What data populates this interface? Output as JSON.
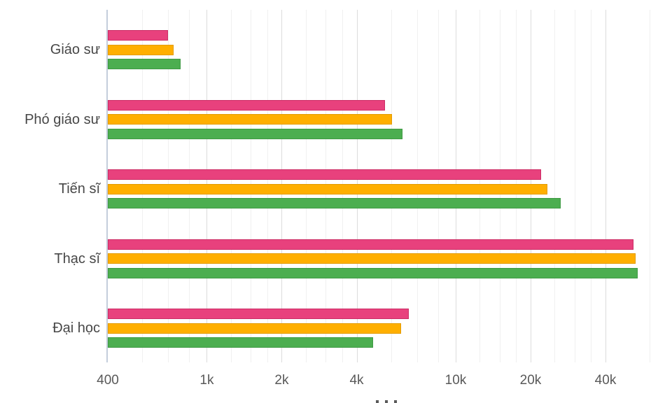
{
  "chart_data": {
    "type": "bar",
    "orientation": "horizontal",
    "title": "",
    "x_scale": "log",
    "legend": "none",
    "grid": true,
    "categories": [
      "Giáo sư",
      "Phó giáo sư",
      "Tiến sĩ",
      "Thạc sĩ",
      "Đại học"
    ],
    "series": [
      {
        "name": "series-pink",
        "color": "#e8417d",
        "border": "#cc2e66",
        "values": [
          700,
          5200,
          22000,
          51800,
          6500
        ]
      },
      {
        "name": "series-orange",
        "color": "#ffaf00",
        "border": "#e39b00",
        "values": [
          735,
          5550,
          23300,
          52900,
          6050
        ]
      },
      {
        "name": "series-green",
        "color": "#4cae50",
        "border": "#3f9a44",
        "values": [
          785,
          6100,
          26400,
          54000,
          4650
        ]
      }
    ],
    "x_ticks": [
      {
        "value": 400,
        "label": "400"
      },
      {
        "value": 1000,
        "label": "1k"
      },
      {
        "value": 2000,
        "label": "2k"
      },
      {
        "value": 4000,
        "label": "4k"
      },
      {
        "value": 10000,
        "label": "10k"
      },
      {
        "value": 20000,
        "label": "20k"
      },
      {
        "value": 40000,
        "label": "40k"
      }
    ],
    "x_minor_gridlines": [
      550,
      700,
      850,
      1250,
      1500,
      1750,
      2500,
      3000,
      3500,
      5500,
      7000,
      8500,
      12500,
      15000,
      17500,
      25000,
      30000,
      35000,
      60000
    ],
    "x_range": [
      400,
      64000
    ],
    "xlabel": "",
    "ylabel": ""
  },
  "colors": {
    "background": "#ffffff",
    "axis_line": "#c4cedc",
    "grid_major": "#dcdcdc",
    "grid_minor": "#f0f0f0",
    "category_label": "#474747",
    "tick_label": "#595959"
  }
}
